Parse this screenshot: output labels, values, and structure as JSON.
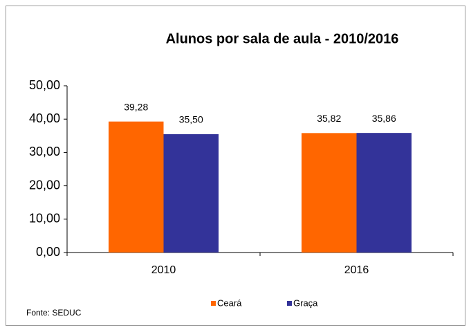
{
  "chart_data": {
    "type": "bar",
    "title": "Alunos por sala de aula - 2010/2016",
    "categories": [
      "2010",
      "2016"
    ],
    "series": [
      {
        "name": "Ceará",
        "color": "#ff6600",
        "values": [
          39.28,
          35.82
        ],
        "value_labels": [
          "39,28",
          "35,82"
        ]
      },
      {
        "name": "Graça",
        "color": "#333399",
        "values": [
          35.5,
          35.86
        ],
        "value_labels": [
          "35,50",
          "35,86"
        ]
      }
    ],
    "ylim": [
      0,
      50
    ],
    "yticks": [
      {
        "value": 0,
        "label": "0,00"
      },
      {
        "value": 10,
        "label": "10,00"
      },
      {
        "value": 20,
        "label": "20,00"
      },
      {
        "value": 30,
        "label": "30,00"
      },
      {
        "value": 40,
        "label": "40,00"
      },
      {
        "value": 50,
        "label": "50,00"
      }
    ],
    "legend": "bottom",
    "source": "Fonte: SEDUC"
  }
}
